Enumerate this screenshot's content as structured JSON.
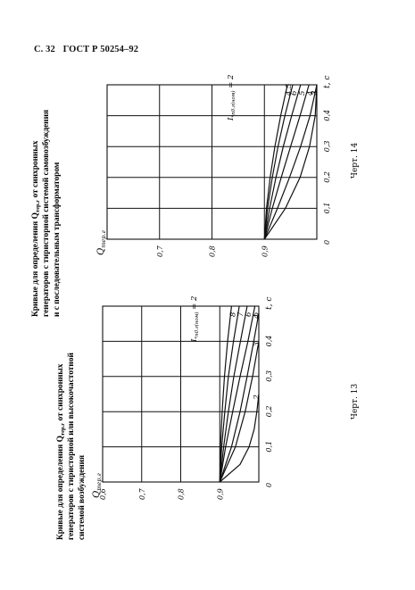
{
  "header": {
    "page": "С. 32",
    "standard": "ГОСТ Р 50254–92"
  },
  "chart_data": [
    {
      "type": "line",
      "caption": [
        "Кривые для определения Q",
        "тер.г",
        " от синхронных",
        "генераторов с тиристорной или высокочастотной",
        "системой возбуждения"
      ],
      "figure_label": "Черт. 13",
      "ylabel": "Q",
      "ylabel_sub": "тер.г",
      "xlabel": "t, с",
      "xlim": [
        0,
        0.5
      ],
      "ylim": [
        0.6,
        1.0
      ],
      "x_ticks": [
        "0",
        "0,1",
        "0,2",
        "0,3",
        "0,4"
      ],
      "y_ticks": [
        "0,6",
        "0,7",
        "0,8",
        "0,9"
      ],
      "curve_param_label": "I",
      "curve_param_sub": "*п0.г(ном)",
      "curve_param_eq": "= 2",
      "series": [
        {
          "name": "2",
          "x": [
            0,
            0.05,
            0.1,
            0.15,
            0.2,
            0.25
          ],
          "y": [
            0.9,
            0.952,
            0.975,
            0.988,
            0.995,
            1.0
          ]
        },
        {
          "name": "3",
          "x": [
            0,
            0.1,
            0.2,
            0.3,
            0.4
          ],
          "y": [
            0.9,
            0.94,
            0.965,
            0.984,
            1.0
          ]
        },
        {
          "name": "4",
          "x": [
            0,
            0.1,
            0.2,
            0.3,
            0.4,
            0.48
          ],
          "y": [
            0.9,
            0.93,
            0.952,
            0.97,
            0.987,
            1.0
          ]
        },
        {
          "name": "5",
          "x": [
            0,
            0.1,
            0.2,
            0.3,
            0.4,
            0.5
          ],
          "y": [
            0.9,
            0.915,
            0.933,
            0.952,
            0.972,
            0.99
          ]
        },
        {
          "name": "6",
          "x": [
            0,
            0.1,
            0.2,
            0.3,
            0.4,
            0.5
          ],
          "y": [
            0.9,
            0.91,
            0.922,
            0.936,
            0.953,
            0.97
          ]
        },
        {
          "name": "7",
          "x": [
            0,
            0.1,
            0.2,
            0.3,
            0.4,
            0.5
          ],
          "y": [
            0.9,
            0.905,
            0.913,
            0.922,
            0.935,
            0.95
          ]
        },
        {
          "name": "8",
          "x": [
            0,
            0.1,
            0.2,
            0.3,
            0.4,
            0.5
          ],
          "y": [
            0.9,
            0.902,
            0.906,
            0.912,
            0.92,
            0.93
          ]
        }
      ]
    },
    {
      "type": "line",
      "caption": [
        "Кривые для определения Q",
        "тер.г",
        " от синхронных",
        "генераторов с тиристорной системой самовозбуждения",
        "и с последовательным трансформатором"
      ],
      "figure_label": "Черт. 14",
      "ylabel": "Q",
      "ylabel_sub": "тер.г",
      "xlabel": "t, с",
      "xlim": [
        0,
        0.5
      ],
      "ylim": [
        0.6,
        1.0
      ],
      "x_ticks": [
        "0",
        "0,1",
        "0,2",
        "0,3",
        "0,4"
      ],
      "y_ticks": [
        "0,7",
        "0,8",
        "0,9"
      ],
      "curve_param_label": "I",
      "curve_param_sub": "*п0.г(ном)",
      "curve_param_eq": "= 2",
      "series": [
        {
          "name": "2",
          "x": [
            0,
            0.1,
            0.2,
            0.3,
            0.4,
            0.5
          ],
          "y": [
            0.9,
            0.94,
            0.968,
            0.986,
            0.997,
            1.0
          ]
        },
        {
          "name": "3",
          "x": [
            0,
            0.1,
            0.2,
            0.3,
            0.4,
            0.5
          ],
          "y": [
            0.9,
            0.925,
            0.948,
            0.969,
            0.987,
            1.0
          ]
        },
        {
          "name": "4",
          "x": [
            0,
            0.1,
            0.2,
            0.3,
            0.4,
            0.5
          ],
          "y": [
            0.9,
            0.915,
            0.932,
            0.95,
            0.968,
            0.985
          ]
        },
        {
          "name": "5",
          "x": [
            0,
            0.1,
            0.2,
            0.3,
            0.4,
            0.5
          ],
          "y": [
            0.9,
            0.91,
            0.922,
            0.936,
            0.952,
            0.969
          ]
        },
        {
          "name": "6",
          "x": [
            0,
            0.1,
            0.2,
            0.3,
            0.4,
            0.5
          ],
          "y": [
            0.9,
            0.906,
            0.915,
            0.926,
            0.939,
            0.954
          ]
        },
        {
          "name": "4,5",
          "x": [
            0,
            0.1,
            0.2,
            0.3,
            0.4,
            0.5
          ],
          "y": [
            0.9,
            0.904,
            0.911,
            0.92,
            0.931,
            0.944
          ]
        }
      ]
    }
  ]
}
